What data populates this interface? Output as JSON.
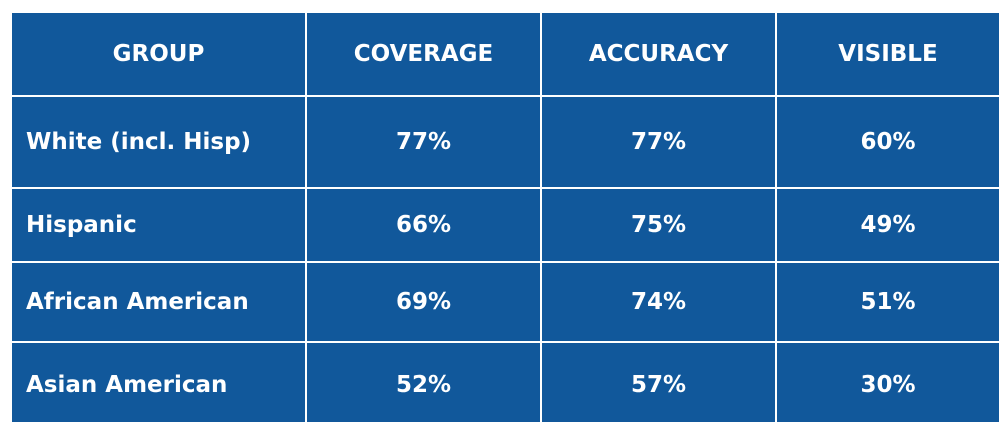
{
  "table": {
    "headers": [
      "GROUP",
      "COVERAGE",
      "ACCURACY",
      "VISIBLE"
    ],
    "rows": [
      {
        "group": "White (incl. Hisp)",
        "coverage": "77%",
        "accuracy": "77%",
        "visible": "60%"
      },
      {
        "group": "Hispanic",
        "coverage": "66%",
        "accuracy": "75%",
        "visible": "49%"
      },
      {
        "group": "African American",
        "coverage": "69%",
        "accuracy": "74%",
        "visible": "51%"
      },
      {
        "group": "Asian American",
        "coverage": "52%",
        "accuracy": "57%",
        "visible": "30%"
      }
    ]
  },
  "colors": {
    "table_background": "#11589b",
    "text": "#ffffff",
    "grid_lines": "#ffffff"
  }
}
